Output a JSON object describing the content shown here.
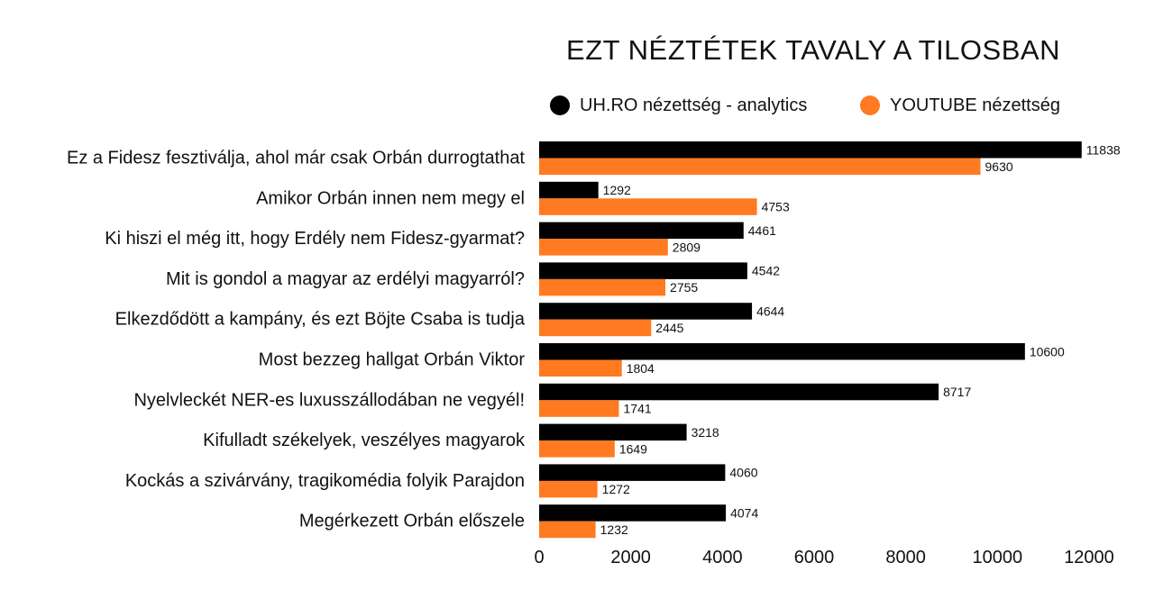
{
  "chart_data": {
    "type": "bar",
    "orientation": "horizontal",
    "title": "EZT NÉZTÉTEK TAVALY A TILOSBAN",
    "xlabel": "",
    "ylabel": "",
    "xlim": [
      0,
      12000
    ],
    "xticks": [
      0,
      2000,
      4000,
      6000,
      8000,
      10000,
      12000
    ],
    "grid": false,
    "legend_position": "top",
    "categories": [
      "Ez a Fidesz fesztiválja, ahol már csak Orbán durrogtathat",
      "Amikor Orbán innen nem megy el",
      "Ki hiszi el még itt, hogy Erdély nem Fidesz-gyarmat?",
      "Mit is gondol a magyar az erdélyi magyarról?",
      "Elkezdődött a kampány, és ezt Böjte Csaba is tudja",
      "Most bezzeg hallgat Orbán Viktor",
      "Nyelvleckét NER-es luxusszállodában ne vegyél!",
      "Kifulladt székelyek, veszélyes magyarok",
      "Kockás a szivárvány, tragikomédia folyik Parajdon",
      "Megérkezett Orbán előszele"
    ],
    "series": [
      {
        "name": "UH.RO nézettség - analytics",
        "color": "#000000",
        "values": [
          11838,
          1292,
          4461,
          4542,
          4644,
          10600,
          8717,
          3218,
          4060,
          4074
        ]
      },
      {
        "name": "YOUTUBE nézettség",
        "color": "#FF7A21",
        "values": [
          9630,
          4753,
          2809,
          2755,
          2445,
          1804,
          1741,
          1649,
          1272,
          1232
        ]
      }
    ]
  }
}
